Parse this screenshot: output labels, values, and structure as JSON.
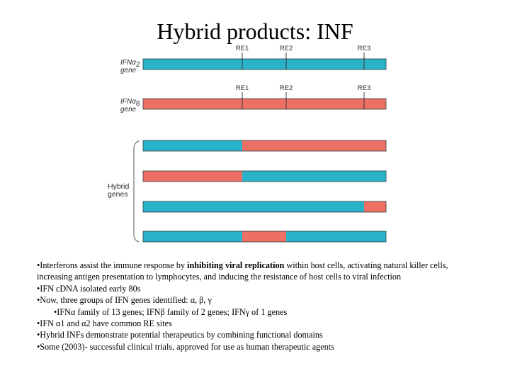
{
  "title": "Hybrid products:  INF",
  "colors": {
    "blue": "#28b3c9",
    "red": "#ee6f63",
    "outline": "#2f3b40",
    "marker": "#3a3a3a"
  },
  "genes": [
    {
      "label_main": "IFNα",
      "label_sub": "2",
      "label_line2": "gene",
      "color": "blue",
      "re_labels": [
        "RE1",
        "RE2",
        "RE3"
      ]
    },
    {
      "label_main": "IFNα",
      "label_sub": "8",
      "label_line2": "gene",
      "color": "red",
      "re_labels": [
        "RE1",
        "RE2",
        "RE3"
      ]
    }
  ],
  "hybrid_label": [
    "Hybrid",
    "genes"
  ],
  "hybrids": [
    {
      "segments": [
        "blue",
        "red"
      ]
    },
    {
      "segments": [
        "red",
        "blue"
      ]
    },
    {
      "segments": [
        "blue",
        "red"
      ]
    },
    {
      "segments": [
        "blue",
        "red",
        "blue"
      ]
    }
  ],
  "notes": [
    {
      "before": "•Interferons assist the immune response by ",
      "bold": "inhibiting viral replication",
      "after": " within host cells, activating natural killer cells, increasing antigen presentation to lymphocytes, and inducing the resistance of host cells to viral infection"
    },
    {
      "text": "•IFN cDNA isolated early 80s"
    },
    {
      "text": "•Now, three groups of IFN genes identified:  α, β, γ"
    },
    {
      "text": "•IFNα family of 13 genes; IFNβ family of 2 genes; IFNγ of 1 genes",
      "indent": true
    },
    {
      "text": "•IFN α1 and α2 have common RE sites"
    },
    {
      "text": "•Hybrid INFs demonstrate potential therapeutics by combining functional domains"
    },
    {
      "text": "•Some (2003)- successful clinical trials, approved for use as human therapeutic agents"
    }
  ]
}
